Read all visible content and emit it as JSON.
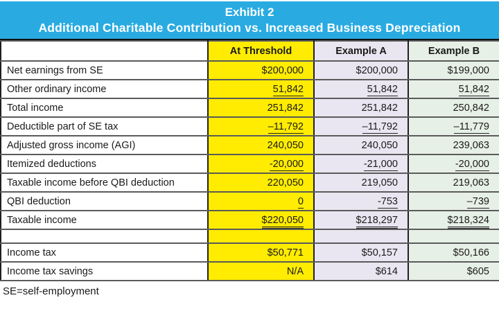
{
  "title": {
    "line1": "Exhibit 2",
    "line2": "Additional Charitable Contribution vs. Increased Business Depreciation"
  },
  "table": {
    "columns": [
      "At Threshold",
      "Example A",
      "Example B"
    ],
    "rows": [
      {
        "label": "Net earnings from SE",
        "values": [
          "$200,000",
          "$200,000",
          "$199,000"
        ],
        "underline": false,
        "total": false,
        "blank": false
      },
      {
        "label": "Other ordinary income",
        "values": [
          "51,842",
          "51,842",
          "51,842"
        ],
        "underline": true,
        "total": false,
        "blank": false
      },
      {
        "label": "Total income",
        "values": [
          "251,842",
          "251,842",
          "250,842"
        ],
        "underline": false,
        "total": false,
        "blank": false
      },
      {
        "label": "Deductible part of SE tax",
        "values": [
          "–11,792",
          "–11,792",
          "–11,779"
        ],
        "underline": true,
        "total": false,
        "blank": false
      },
      {
        "label": "Adjusted gross income (AGI)",
        "values": [
          "240,050",
          "240,050",
          "239,063"
        ],
        "underline": false,
        "total": false,
        "blank": false
      },
      {
        "label": "Itemized deductions",
        "values": [
          "-20,000",
          "-21,000",
          "-20,000"
        ],
        "underline": true,
        "total": false,
        "blank": false
      },
      {
        "label": "Taxable income before QBI deduction",
        "values": [
          "220,050",
          "219,050",
          "219,063"
        ],
        "underline": false,
        "total": false,
        "blank": false
      },
      {
        "label": "QBI deduction",
        "values": [
          "0",
          "-753",
          "–739"
        ],
        "underline": true,
        "total": false,
        "blank": false
      },
      {
        "label": "Taxable income",
        "values": [
          "$220,050",
          "$218,297",
          "$218,324"
        ],
        "underline": true,
        "total": true,
        "blank": false
      },
      {
        "label": "",
        "values": [
          "",
          "",
          ""
        ],
        "underline": false,
        "total": false,
        "blank": true
      },
      {
        "label": "Income tax",
        "values": [
          "$50,771",
          "$50,157",
          "$50,166"
        ],
        "underline": false,
        "total": false,
        "blank": false
      },
      {
        "label": "Income tax savings",
        "values": [
          "N/A",
          "$614",
          "$605"
        ],
        "underline": false,
        "total": false,
        "blank": false
      }
    ]
  },
  "footnote": "SE=self-employment",
  "colors": {
    "banner_blue": "#29ABE2",
    "threshold_yellow": "#FFEC00",
    "example_a_lavender": "#E9E6F1",
    "example_b_green": "#E7F0E7",
    "border_dark": "#111111",
    "row_divider_gray": "#5a5a5a"
  }
}
